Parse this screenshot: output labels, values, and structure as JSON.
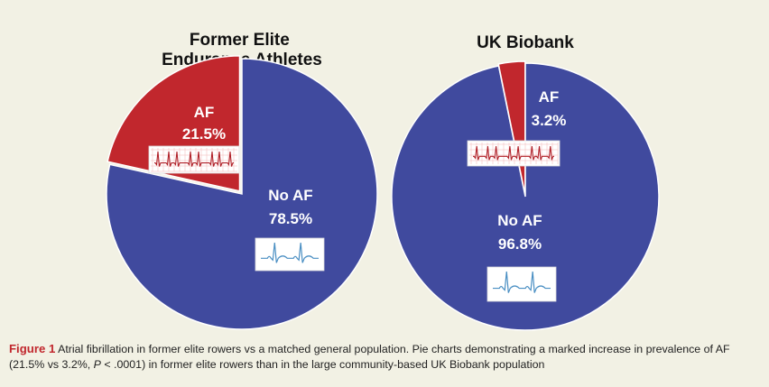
{
  "figure": {
    "caption_label": "Figure 1",
    "caption_part1": "Atrial fibrillation in former elite rowers vs a matched general population. Pie charts demonstrating a marked increase in prevalence of AF (21.5% vs 3.2%, ",
    "caption_p": "P",
    "caption_part2": " < .0001) in former elite rowers than in the large community-based UK Biobank population"
  },
  "colors": {
    "no_af": "#404a9e",
    "af": "#c1272d",
    "background": "#f2f1e4",
    "ecg_stroke": "#4a8fc3"
  },
  "chart_data": [
    {
      "type": "pie",
      "title": "Former Elite\nEndurance Athletes",
      "title_lines": [
        "Former Elite",
        "Endurance Athletes"
      ],
      "slices": [
        {
          "label": "AF",
          "value": 21.5,
          "value_label": "21.5%",
          "color": "#c1272d",
          "icon": "ecg-strip-irregular-icon"
        },
        {
          "label": "No AF",
          "value": 78.5,
          "value_label": "78.5%",
          "color": "#404a9e",
          "icon": "ecg-sinus-rhythm-icon"
        }
      ],
      "legend": "none"
    },
    {
      "type": "pie",
      "title": "UK Biobank",
      "title_lines": [
        "UK Biobank"
      ],
      "slices": [
        {
          "label": "AF",
          "value": 3.2,
          "value_label": "3.2%",
          "color": "#c1272d",
          "icon": "ecg-strip-irregular-icon"
        },
        {
          "label": "No AF",
          "value": 96.8,
          "value_label": "96.8%",
          "color": "#404a9e",
          "icon": "ecg-sinus-rhythm-icon"
        }
      ],
      "legend": "none"
    }
  ]
}
